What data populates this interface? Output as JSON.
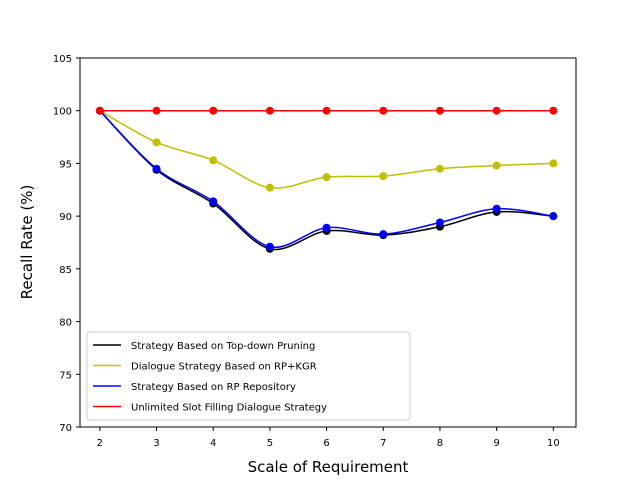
{
  "chart_data": {
    "type": "line",
    "title": "",
    "xlabel": "Scale of Requirement",
    "ylabel": "Recall Rate (%)",
    "x": [
      2,
      3,
      4,
      5,
      6,
      7,
      8,
      9,
      10
    ],
    "xlim": [
      1.65,
      10.4
    ],
    "ylim": [
      70,
      105
    ],
    "xticks": [
      "2",
      "3",
      "4",
      "5",
      "6",
      "7",
      "8",
      "9",
      "10"
    ],
    "yticks": [
      "70",
      "75",
      "80",
      "85",
      "90",
      "95",
      "100",
      "105"
    ],
    "grid": false,
    "legend_position": "lower-left",
    "series": [
      {
        "name": "Strategy Based on Top-down Pruning",
        "color": "#000000",
        "values": [
          100,
          94.4,
          91.2,
          86.9,
          88.6,
          88.2,
          89.0,
          90.4,
          90.0
        ]
      },
      {
        "name": "Dialogue Strategy Based on RP+KGR",
        "color": "#bfbf00",
        "values": [
          100,
          97.0,
          95.3,
          92.7,
          93.7,
          93.8,
          94.5,
          94.8,
          95.0
        ]
      },
      {
        "name": "Strategy Based on RP Repository",
        "color": "#0000ff",
        "values": [
          100,
          94.5,
          91.4,
          87.1,
          88.9,
          88.3,
          89.4,
          90.7,
          90.0
        ]
      },
      {
        "name": "Unlimited Slot Filling Dialogue Strategy",
        "color": "#ff0000",
        "values": [
          100,
          100,
          100,
          100,
          100,
          100,
          100,
          100,
          100
        ]
      }
    ]
  }
}
